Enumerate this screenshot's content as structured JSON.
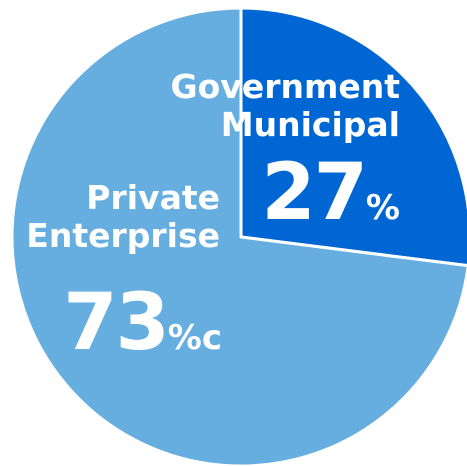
{
  "chart_data": {
    "type": "pie",
    "categories": [
      "Government Municipal",
      "Private Enterprise"
    ],
    "values": [
      27,
      73
    ],
    "units": [
      "%",
      "%c"
    ],
    "colors": [
      "#0066d4",
      "#66aee0"
    ]
  }
}
